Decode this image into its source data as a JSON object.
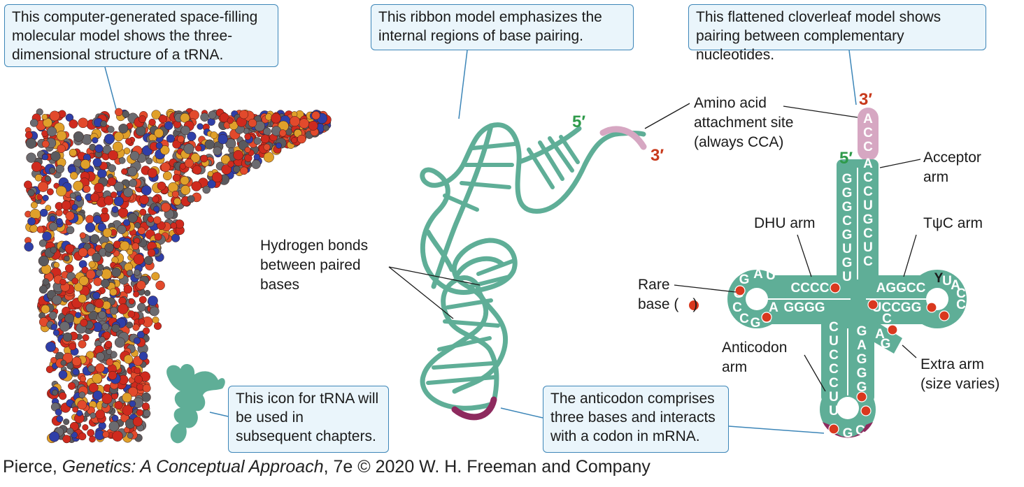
{
  "callouts": {
    "space_filling": "This computer-generated space-filling molecular model shows the three-dimensional structure of a tRNA.",
    "ribbon": "This ribbon model emphasizes the internal regions of base pairing.",
    "cloverleaf": "This flattened cloverleaf model shows pairing between complementary nucleotides.",
    "icon": "This icon for tRNA will be used in subsequent chapters.",
    "anticodon": "The anticodon comprises three bases and interacts with a codon in mRNA."
  },
  "labels": {
    "hydrogen_bonds": [
      "Hydrogen bonds",
      "between paired",
      "bases"
    ],
    "attachment": [
      "Amino acid",
      "attachment site",
      "(always CCA)"
    ],
    "acceptor_arm": [
      "Acceptor",
      "arm"
    ],
    "dhu_arm": "DHU arm",
    "tpsic_arm": "TψC arm",
    "rare_base": [
      "Rare",
      "base ("
    ],
    "rare_base_close": ")",
    "anticodon_arm": [
      "Anticodon",
      "arm"
    ],
    "extra_arm": [
      "Extra arm",
      "(size varies)"
    ]
  },
  "ends": {
    "five_prime": "5′",
    "three_prime": "3′"
  },
  "cloverleaf_bases": {
    "acceptor_3_tail": [
      "A",
      "C",
      "C"
    ],
    "acceptor_3_stem": [
      "A",
      "C",
      "C",
      "U",
      "G",
      "C",
      "U",
      "C"
    ],
    "acceptor_5_stem": [
      "G",
      "G",
      "G",
      "C",
      "G",
      "U",
      "G",
      "U"
    ],
    "dhu_top": "CCCC",
    "dhu_loop": [
      "G",
      "A",
      "U",
      "G"
    ],
    "dhu_loop_low": [
      "C",
      "C",
      "G",
      "G"
    ],
    "dhu_bottom": "GGGG",
    "dhu_bottom_a": "A",
    "tpsic_top": "AGGCC",
    "tpsic_bottom": "UCCGG",
    "tpsic_loop": [
      "Y",
      "U",
      "A",
      "C",
      "C"
    ],
    "anticodon_left": [
      "C",
      "U",
      "C",
      "C",
      "C",
      "U",
      "U"
    ],
    "anticodon_right": [
      "G",
      "A",
      "G",
      "G",
      "G"
    ],
    "extra": [
      "C",
      "A",
      "G"
    ],
    "anticodon_loop": [
      "G",
      "C"
    ]
  },
  "credit": {
    "author": "Pierce, ",
    "title": "Genetics: A Conceptual Approach",
    "rest": ", 7e © 2020 W. H. Freeman and Company"
  },
  "colors": {
    "teal": "#5fae97",
    "pink": "#d6a7c2",
    "anticodon": "#8e2a5e",
    "red_prime": "#c83a1c",
    "green_prime": "#2e9a4a",
    "callout_border": "#3d86b8",
    "callout_fill": "#eaf5fb",
    "rare_dot": "#d9381e"
  }
}
